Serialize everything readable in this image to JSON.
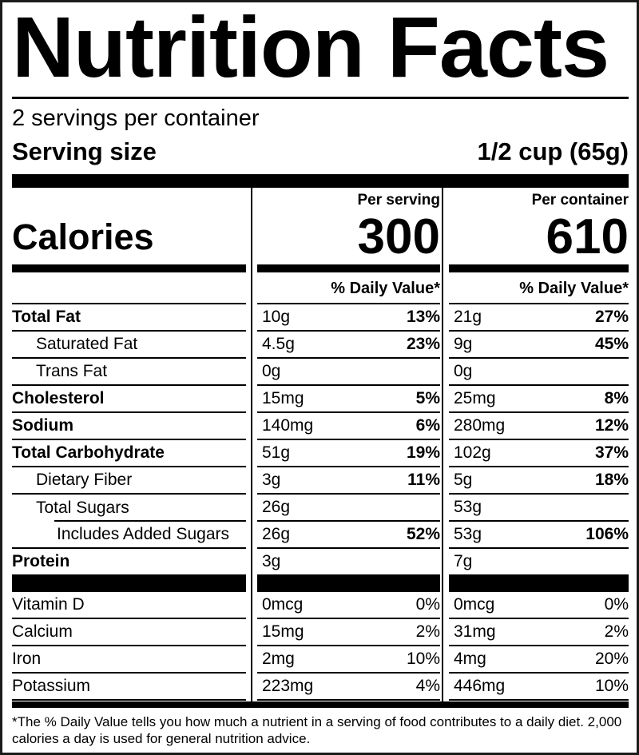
{
  "label": {
    "title": "Nutrition Facts",
    "servings_per_container": "2 servings per container",
    "serving_size_label": "Serving size",
    "serving_size_value": "1/2 cup (65g)",
    "calories": {
      "label": "Calories",
      "per_serving_header": "Per serving",
      "per_container_header": "Per container",
      "per_serving_value": "300",
      "per_container_value": "610"
    },
    "daily_value_header_serving": "% Daily Value*",
    "daily_value_header_container": "% Daily Value*",
    "nutrients": [
      {
        "name": "Total Fat",
        "serving_amount": "10g",
        "serving_dv": "13%",
        "container_amount": "21g",
        "container_dv": "27%"
      },
      {
        "name": "Saturated Fat",
        "serving_amount": "4.5g",
        "serving_dv": "23%",
        "container_amount": "9g",
        "container_dv": "45%"
      },
      {
        "name": "Trans Fat",
        "serving_amount": "0g",
        "serving_dv": "",
        "container_amount": "0g",
        "container_dv": ""
      },
      {
        "name": "Cholesterol",
        "serving_amount": "15mg",
        "serving_dv": "5%",
        "container_amount": "25mg",
        "container_dv": "8%"
      },
      {
        "name": "Sodium",
        "serving_amount": "140mg",
        "serving_dv": "6%",
        "container_amount": "280mg",
        "container_dv": "12%"
      },
      {
        "name": "Total Carbohydrate",
        "serving_amount": "51g",
        "serving_dv": "19%",
        "container_amount": "102g",
        "container_dv": "37%"
      },
      {
        "name": "Dietary Fiber",
        "serving_amount": "3g",
        "serving_dv": "11%",
        "container_amount": "5g",
        "container_dv": "18%"
      },
      {
        "name": "Total Sugars",
        "serving_amount": "26g",
        "serving_dv": "",
        "container_amount": "53g",
        "container_dv": ""
      },
      {
        "name": "Includes Added Sugars",
        "serving_amount": "26g",
        "serving_dv": "52%",
        "container_amount": "53g",
        "container_dv": "106%"
      },
      {
        "name": "Protein",
        "serving_amount": "3g",
        "serving_dv": "",
        "container_amount": "7g",
        "container_dv": ""
      }
    ],
    "vitamins": [
      {
        "name": "Vitamin D",
        "serving_amount": "0mcg",
        "serving_dv": "0%",
        "container_amount": "0mcg",
        "container_dv": "0%"
      },
      {
        "name": "Calcium",
        "serving_amount": "15mg",
        "serving_dv": "2%",
        "container_amount": "31mg",
        "container_dv": "2%"
      },
      {
        "name": "Iron",
        "serving_amount": "2mg",
        "serving_dv": "10%",
        "container_amount": "4mg",
        "container_dv": "20%"
      },
      {
        "name": "Potassium",
        "serving_amount": "223mg",
        "serving_dv": "4%",
        "container_amount": "446mg",
        "container_dv": "10%"
      }
    ],
    "footnote": "*The % Daily Value tells you how much a nutrient in a serving of food contributes to a daily diet. 2,000 calories a day is used for general nutrition advice."
  }
}
